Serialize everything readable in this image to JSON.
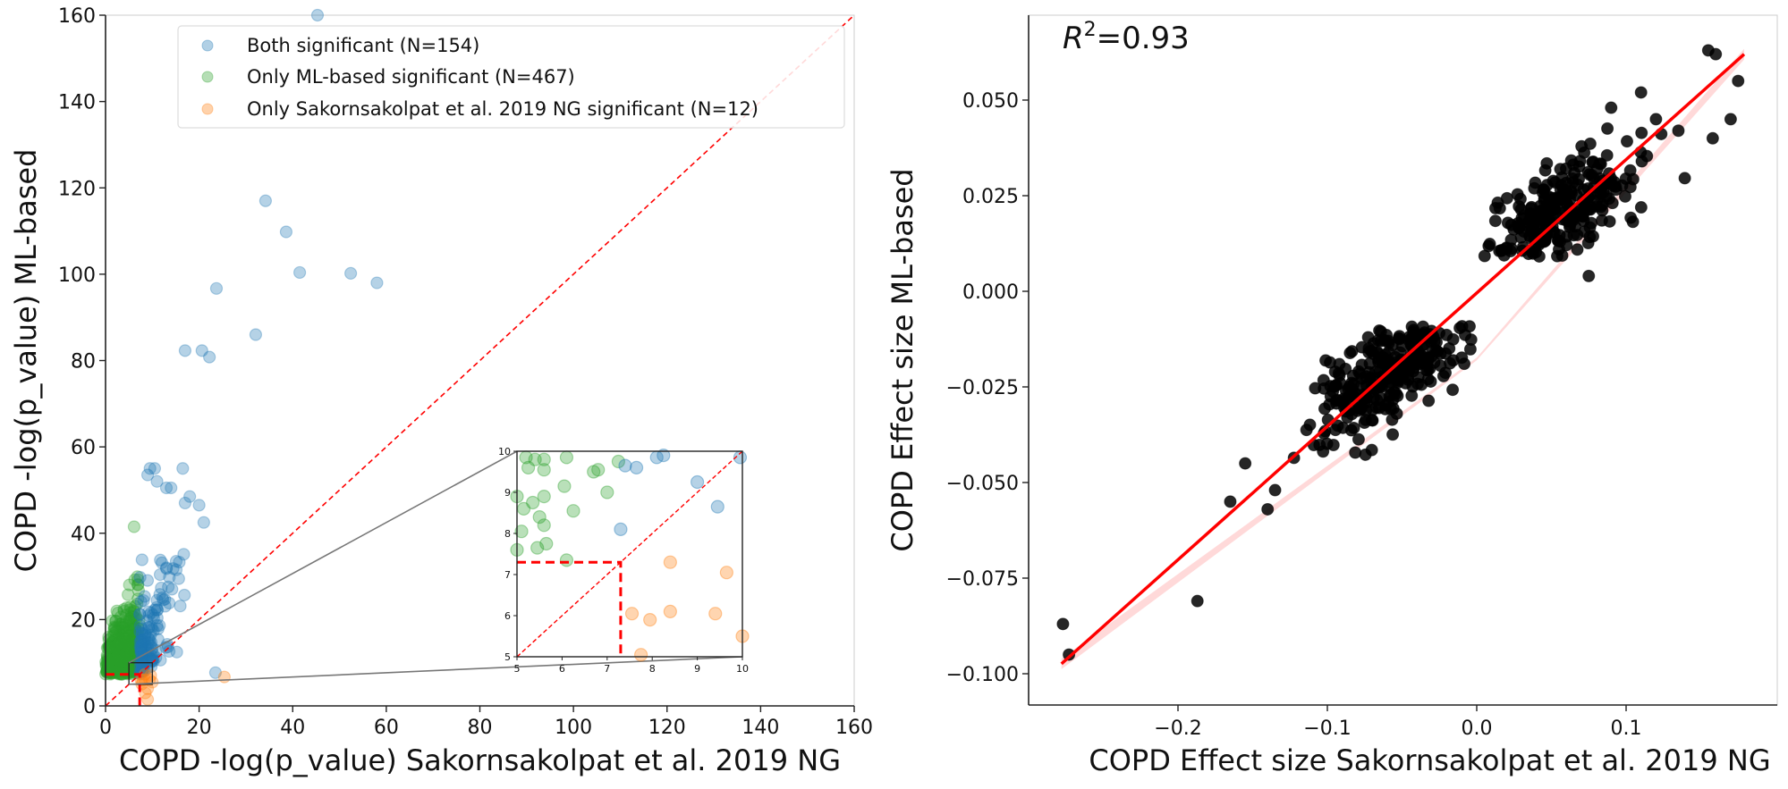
{
  "chart_data": [
    {
      "type": "scatter",
      "panel": "left",
      "xlabel": "COPD -log(p_value) Sakornsakolpat et al. 2019 NG",
      "ylabel": "COPD -log(p_value) ML-based",
      "xlim": [
        0,
        160
      ],
      "ylim": [
        0,
        160
      ],
      "xticks": [
        0,
        20,
        40,
        60,
        80,
        100,
        120,
        140,
        160
      ],
      "yticks": [
        0,
        20,
        40,
        60,
        80,
        100,
        120,
        140,
        160
      ],
      "grid": false,
      "legend_position": "top-center",
      "reference_line": {
        "type": "identity",
        "style": "dashed",
        "color": "#ff0000"
      },
      "threshold": 7.3,
      "series": [
        {
          "name": "Both significant (N=154)",
          "color": "#1f77b4",
          "count": 154,
          "points": [
            [
              45.3,
              160
            ],
            [
              34.2,
              117
            ],
            [
              38.6,
              109.8
            ],
            [
              41.5,
              100.4
            ],
            [
              52.4,
              100.2
            ],
            [
              58,
              98
            ],
            [
              23.7,
              96.7
            ],
            [
              32.1,
              86
            ],
            [
              17,
              82.3
            ],
            [
              20.6,
              82.3
            ],
            [
              22.2,
              80.8
            ],
            [
              9.5,
              55
            ],
            [
              10.5,
              55
            ],
            [
              16.5,
              55
            ],
            [
              14,
              50.5
            ],
            [
              13,
              50.5
            ],
            [
              18,
              48.5
            ],
            [
              20,
              46.5
            ],
            [
              17,
              47
            ],
            [
              9,
              53.5
            ],
            [
              11,
              52
            ],
            [
              21,
              42.5
            ],
            [
              23.5,
              7.7
            ],
            [
              7.4,
              9.65
            ],
            [
              7.65,
              9.6
            ],
            [
              8.1,
              9.85
            ],
            [
              8.25,
              9.9
            ],
            [
              9,
              9.25
            ],
            [
              9.45,
              8.65
            ],
            [
              7.3,
              8.1
            ],
            [
              9.95,
              9.85
            ]
          ]
        },
        {
          "name": "Only ML-based significant (N=467)",
          "color": "#2ca02c",
          "count": 467,
          "points": [
            [
              6.1,
              41.5
            ],
            [
              5.2,
              9.85
            ],
            [
              5.4,
              9.8
            ],
            [
              5.6,
              9.8
            ],
            [
              6.1,
              9.85
            ],
            [
              7.25,
              9.75
            ],
            [
              6.7,
              9.5
            ],
            [
              6.8,
              9.55
            ],
            [
              5.25,
              9.6
            ],
            [
              5.6,
              9.55
            ],
            [
              6.05,
              9.15
            ],
            [
              7,
              9
            ],
            [
              5.35,
              8.75
            ],
            [
              5.6,
              8.9
            ],
            [
              5.15,
              8.6
            ],
            [
              6.25,
              8.55
            ],
            [
              5.5,
              8.4
            ],
            [
              5.6,
              8.2
            ],
            [
              5.1,
              8.05
            ],
            [
              5.65,
              7.75
            ],
            [
              5.45,
              7.65
            ],
            [
              6.1,
              7.35
            ],
            [
              5.0,
              8.9
            ],
            [
              5.0,
              7.6
            ]
          ]
        },
        {
          "name": "Only Sakornsakolpat et al. 2019 NG significant (N=12)",
          "color": "#ff7f0e",
          "count": 12,
          "points": [
            [
              25.4,
              6.7
            ],
            [
              8.4,
              7.3
            ],
            [
              9.65,
              7.05
            ],
            [
              7.55,
              6.05
            ],
            [
              7.95,
              5.9
            ],
            [
              8.4,
              6.1
            ],
            [
              9.4,
              6.05
            ],
            [
              7.75,
              5.05
            ],
            [
              9,
              4
            ],
            [
              8.5,
              3
            ],
            [
              9,
              1.5
            ],
            [
              10,
              5.5
            ]
          ]
        }
      ],
      "inset": {
        "xlim": [
          5,
          10
        ],
        "ylim": [
          5,
          10
        ],
        "xticks": [
          5,
          6,
          7,
          8,
          9,
          10
        ],
        "yticks": [
          5,
          6,
          7,
          8,
          9,
          10
        ],
        "threshold": 7.3
      }
    },
    {
      "type": "scatter",
      "panel": "right",
      "xlabel": "COPD Effect size Sakornsakolpat et al. 2019 NG",
      "ylabel": "COPD Effect size ML-based",
      "xlim": [
        -0.3,
        0.2
      ],
      "ylim": [
        -0.108,
        0.072
      ],
      "xticks": [
        -0.2,
        -0.1,
        0.0,
        0.1
      ],
      "xtick_labels": [
        "−0.2",
        "−0.1",
        "0.0",
        "0.1"
      ],
      "yticks": [
        -0.1,
        -0.075,
        -0.05,
        -0.025,
        0.0,
        0.025,
        0.05
      ],
      "ytick_labels": [
        "−0.100",
        "−0.075",
        "−0.050",
        "−0.025",
        "0.000",
        "0.025",
        "0.050"
      ],
      "grid": false,
      "annotation": {
        "text_base": "R",
        "text_sup": "2",
        "text_rest": "=0.93",
        "position": "top-left"
      },
      "point_color": "#000000",
      "regression": {
        "x_start": -0.278,
        "y_start": -0.0974,
        "x_end": 0.179,
        "y_end": 0.062,
        "color": "#ff0000",
        "r2": 0.93
      },
      "outliers": [
        [
          -0.277,
          -0.087
        ],
        [
          -0.273,
          -0.095
        ],
        [
          -0.187,
          -0.081
        ],
        [
          -0.165,
          -0.055
        ],
        [
          -0.155,
          -0.045
        ],
        [
          -0.14,
          -0.057
        ],
        [
          -0.135,
          -0.052
        ],
        [
          0.155,
          0.063
        ],
        [
          0.16,
          0.062
        ],
        [
          0.175,
          0.055
        ],
        [
          0.17,
          0.045
        ],
        [
          0.158,
          0.04
        ],
        [
          0.12,
          0.045
        ],
        [
          0.09,
          0.048
        ],
        [
          0.11,
          0.052
        ],
        [
          0.135,
          0.042
        ],
        [
          0.075,
          0.004
        ]
      ],
      "clusters": [
        {
          "cx": -0.055,
          "cy": -0.02,
          "sx": 0.027,
          "sy": 0.0065,
          "n": 330,
          "rot": 0.22
        },
        {
          "cx": 0.055,
          "cy": 0.02,
          "sx": 0.027,
          "sy": 0.0065,
          "n": 290,
          "rot": 0.22
        }
      ]
    }
  ],
  "legend": {
    "items": [
      {
        "label": "Both significant (N=154)",
        "color": "#1f77b4"
      },
      {
        "label": "Only ML-based significant (N=467)",
        "color": "#2ca02c"
      },
      {
        "label": "Only Sakornsakolpat et al. 2019 NG significant (N=12)",
        "color": "#ff7f0e"
      }
    ]
  }
}
